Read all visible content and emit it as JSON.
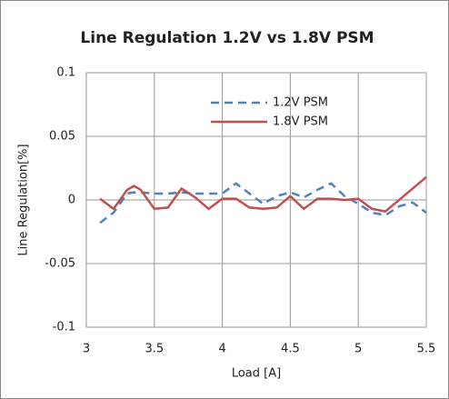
{
  "chart_data": {
    "type": "line",
    "title": "Line Regulation 1.2V vs 1.8V PSM",
    "x_label": "Load [A]",
    "y_label": "Line Regulation[%]",
    "x": [
      3.1,
      3.2,
      3.3,
      3.35,
      3.4,
      3.5,
      3.6,
      3.7,
      3.8,
      3.9,
      4.0,
      4.1,
      4.2,
      4.3,
      4.4,
      4.5,
      4.6,
      4.7,
      4.8,
      4.9,
      5.0,
      5.1,
      5.2,
      5.3,
      5.4,
      5.5
    ],
    "series": [
      {
        "name": "1.2V PSM",
        "color": "#4f81bd",
        "dash": true,
        "values": [
          -0.018,
          -0.01,
          0.005,
          0.006,
          0.006,
          0.005,
          0.005,
          0.006,
          0.005,
          0.005,
          0.005,
          0.013,
          0.005,
          -0.003,
          0.003,
          0.006,
          0.002,
          0.008,
          0.013,
          0.003,
          -0.003,
          -0.01,
          -0.012,
          -0.005,
          -0.002,
          -0.01
        ]
      },
      {
        "name": "1.8V PSM",
        "color": "#c0504d",
        "dash": false,
        "values": [
          0.001,
          -0.007,
          0.008,
          0.011,
          0.008,
          -0.007,
          -0.006,
          0.009,
          0.002,
          -0.007,
          0.001,
          0.001,
          -0.006,
          -0.007,
          -0.006,
          0.003,
          -0.007,
          0.001,
          0.001,
          0.0,
          0.001,
          -0.007,
          -0.009,
          0.0,
          0.009,
          0.018
        ]
      }
    ],
    "xlim": [
      3,
      5.5
    ],
    "xticks": [
      3,
      3.5,
      4,
      4.5,
      5,
      5.5
    ],
    "ylim": [
      -0.1,
      0.1
    ],
    "yticks": [
      -0.1,
      -0.05,
      0,
      0.05,
      0.1
    ],
    "grid": true,
    "legend": "upper right"
  }
}
